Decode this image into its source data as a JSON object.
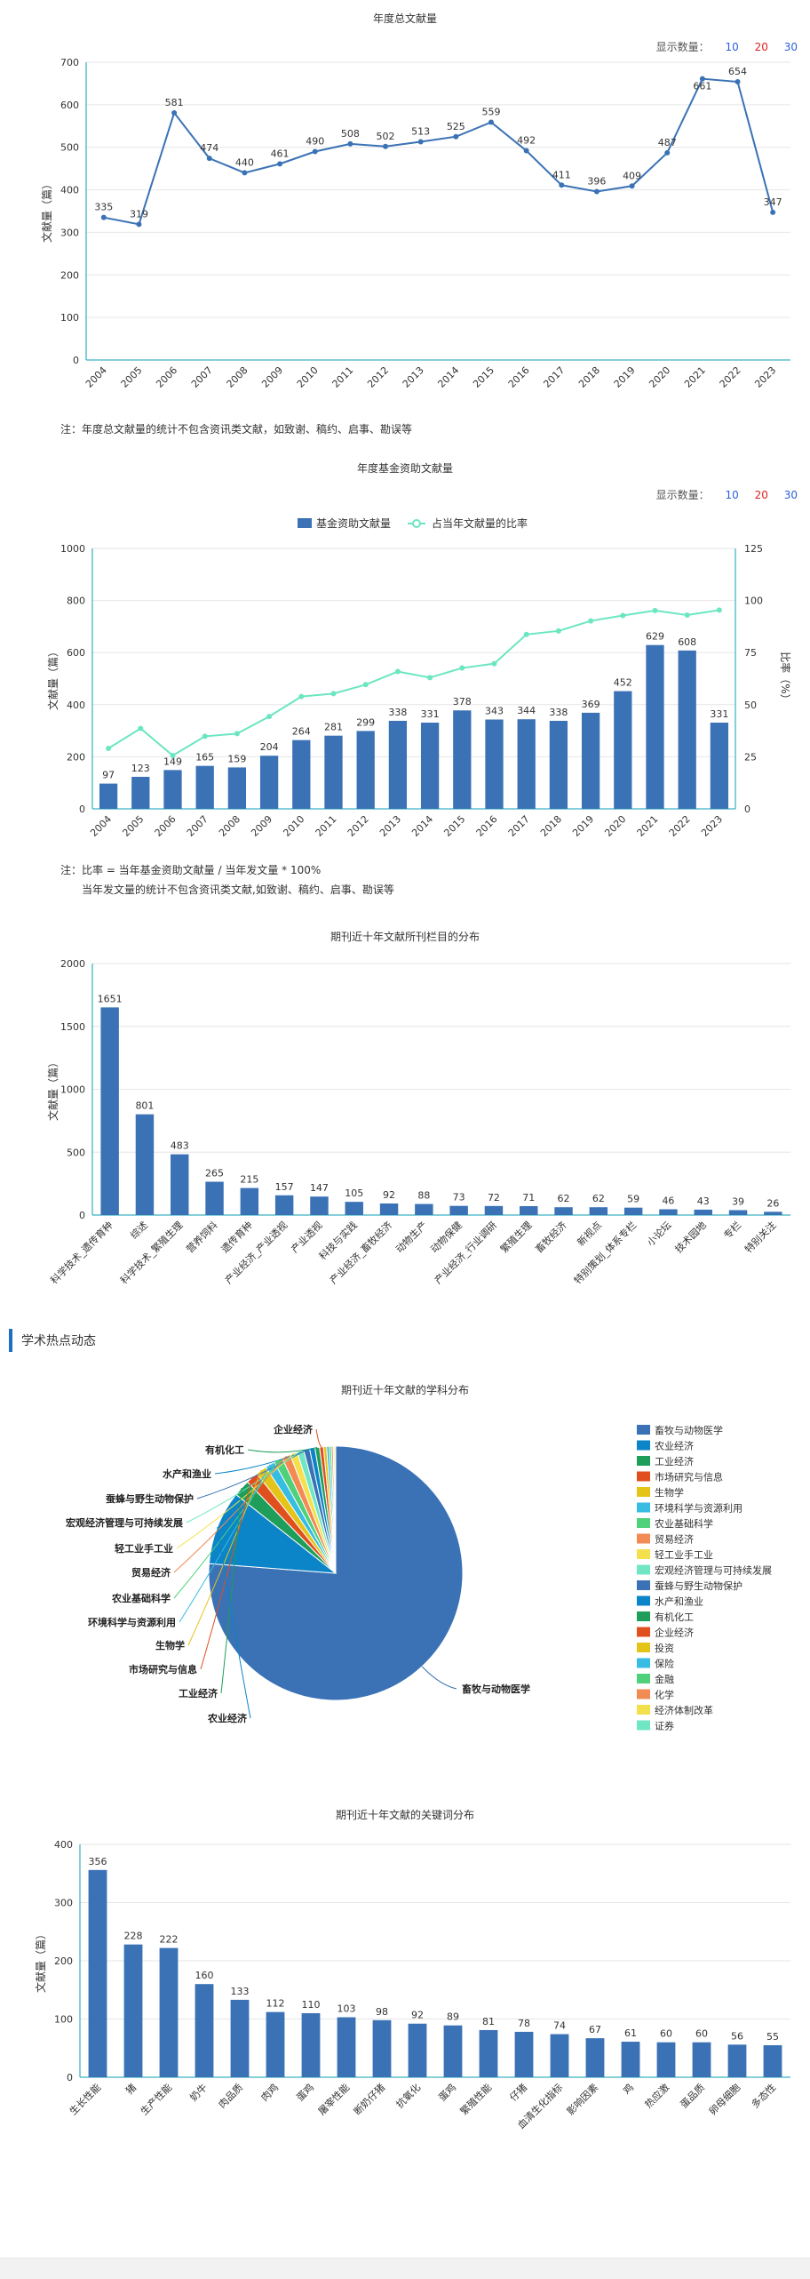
{
  "display_count": {
    "label": "显示数量：",
    "options": [
      "10",
      "20",
      "30"
    ],
    "colors": [
      "#2b5fd9",
      "#e02020",
      "#2b5fd9"
    ]
  },
  "chart_data": [
    {
      "type": "line",
      "title": "年度总文献量",
      "ylabel": "文献量（篇）",
      "categories": [
        "2004",
        "2005",
        "2006",
        "2007",
        "2008",
        "2009",
        "2010",
        "2011",
        "2012",
        "2013",
        "2014",
        "2015",
        "2016",
        "2017",
        "2018",
        "2019",
        "2020",
        "2021",
        "2022",
        "2023"
      ],
      "values": [
        335,
        319,
        581,
        474,
        440,
        461,
        490,
        508,
        502,
        513,
        525,
        559,
        492,
        411,
        396,
        409,
        487,
        661,
        654,
        347
      ],
      "ylim": [
        0,
        700
      ],
      "yticks": [
        0,
        100,
        200,
        300,
        400,
        500,
        600,
        700
      ],
      "color": "#3a72b5",
      "note": "注：年度总文献量的统计不包含资讯类文献，如致谢、稿约、启事、勘误等"
    },
    {
      "type": "bar",
      "title": "年度基金资助文献量",
      "ylabel": "文献量（篇）",
      "ylabel_right": "比率（%）",
      "legend": [
        "基金资助文献量",
        "占当年文献量的比率"
      ],
      "categories": [
        "2004",
        "2005",
        "2006",
        "2007",
        "2008",
        "2009",
        "2010",
        "2011",
        "2012",
        "2013",
        "2014",
        "2015",
        "2016",
        "2017",
        "2018",
        "2019",
        "2020",
        "2021",
        "2022",
        "2023"
      ],
      "values": [
        97,
        123,
        149,
        165,
        159,
        204,
        264,
        281,
        299,
        338,
        331,
        378,
        343,
        344,
        338,
        369,
        452,
        629,
        608,
        331
      ],
      "ratio": [
        29,
        38.6,
        25.6,
        34.8,
        36.1,
        44.3,
        53.9,
        55.3,
        59.6,
        65.9,
        63,
        67.6,
        69.7,
        83.7,
        85.4,
        90.2,
        92.8,
        95.2,
        93,
        95.4
      ],
      "ylim": [
        0,
        1000
      ],
      "yticks": [
        0,
        200,
        400,
        600,
        800,
        1000
      ],
      "ylim_right": [
        0,
        125
      ],
      "yticks_right": [
        0,
        25,
        50,
        75,
        100,
        125
      ],
      "bar_color": "#3a72b5",
      "line_color": "#6be6c1",
      "note": [
        "注：比率 = 当年基金资助文献量 / 当年发文量 * 100%",
        "当年发文量的统计不包含资讯类文献,如致谢、稿约、启事、勘误等"
      ]
    },
    {
      "type": "bar",
      "title": "期刊近十年文献所刊栏目的分布",
      "ylabel": "文献量（篇）",
      "categories": [
        "科学技术_遗传育种",
        "综述",
        "科学技术_繁殖生理",
        "营养饲料",
        "遗传育种",
        "产业经济_产业透视",
        "产业透视",
        "科技与实践",
        "产业经济_畜牧经济",
        "动物生产",
        "动物保健",
        "产业经济_行业调研",
        "繁殖生理",
        "畜牧经济",
        "新视点",
        "特别策划_体系专栏",
        "小论坛",
        "技术园地",
        "专栏",
        "特别关注"
      ],
      "values": [
        1651,
        801,
        483,
        265,
        215,
        157,
        147,
        105,
        92,
        88,
        73,
        72,
        71,
        62,
        62,
        59,
        46,
        43,
        39,
        26
      ],
      "ylim": [
        0,
        2000
      ],
      "yticks": [
        0,
        500,
        1000,
        1500,
        2000
      ],
      "bar_color": "#3a72b5"
    },
    {
      "type": "pie",
      "title": "期刊近十年文献的学科分布",
      "categories": [
        "畜牧与动物医学",
        "农业经济",
        "工业经济",
        "市场研究与信息",
        "生物学",
        "环境科学与资源利用",
        "农业基础科学",
        "贸易经济",
        "轻工业手工业",
        "宏观经济管理与可持续发展",
        "蚕蜂与野生动物保护",
        "水产和渔业",
        "有机化工",
        "企业经济",
        "投资",
        "保险",
        "金融",
        "化学",
        "经济体制改革",
        "证券"
      ],
      "values": [
        3400,
        420,
        95,
        70,
        62,
        55,
        50,
        48,
        42,
        38,
        34,
        30,
        26,
        22,
        18,
        15,
        12,
        10,
        8,
        6
      ],
      "colors": [
        "#3a72b5",
        "#0b84c8",
        "#1e9e5a",
        "#e0501f",
        "#e5c419",
        "#37bde3",
        "#4fd07a",
        "#f28a53",
        "#f3e04c",
        "#71e6c4",
        "#3a72b5",
        "#0b84c8",
        "#1e9e5a",
        "#e0501f",
        "#e5c419",
        "#37bde3",
        "#4fd07a",
        "#f28a53",
        "#f3e04c",
        "#71e6c4"
      ],
      "labelled": [
        "企业经济",
        "有机化工",
        "水产和渔业",
        "蚕蜂与野生动物保护",
        "宏观经济管理与可持续发展",
        "轻工业手工业",
        "贸易经济",
        "农业基础科学",
        "环境科学与资源利用",
        "生物学",
        "市场研究与信息",
        "工业经济",
        "农业经济",
        "畜牧与动物医学"
      ]
    },
    {
      "type": "bar",
      "title": "期刊近十年文献的关键词分布",
      "ylabel": "文献量（篇）",
      "categories": [
        "生长性能",
        "猪",
        "生产性能",
        "奶牛",
        "肉品质",
        "肉鸡",
        "蛋鸡",
        "屠宰性能",
        "断奶仔猪",
        "抗氧化",
        "蛋鸡2",
        "繁殖性能",
        "仔猪",
        "血清生化指标",
        "影响因素",
        "鸡",
        "热应激",
        "蛋品质",
        "卵母细胞",
        "多态性"
      ],
      "values": [
        356,
        228,
        222,
        160,
        133,
        112,
        110,
        103,
        98,
        92,
        89,
        81,
        78,
        74,
        67,
        61,
        60,
        60,
        56,
        55
      ],
      "ylim": [
        0,
        400
      ],
      "yticks": [
        0,
        100,
        200,
        300,
        400
      ],
      "bar_color": "#3a72b5"
    }
  ],
  "section": {
    "title": "学术热点动态"
  }
}
